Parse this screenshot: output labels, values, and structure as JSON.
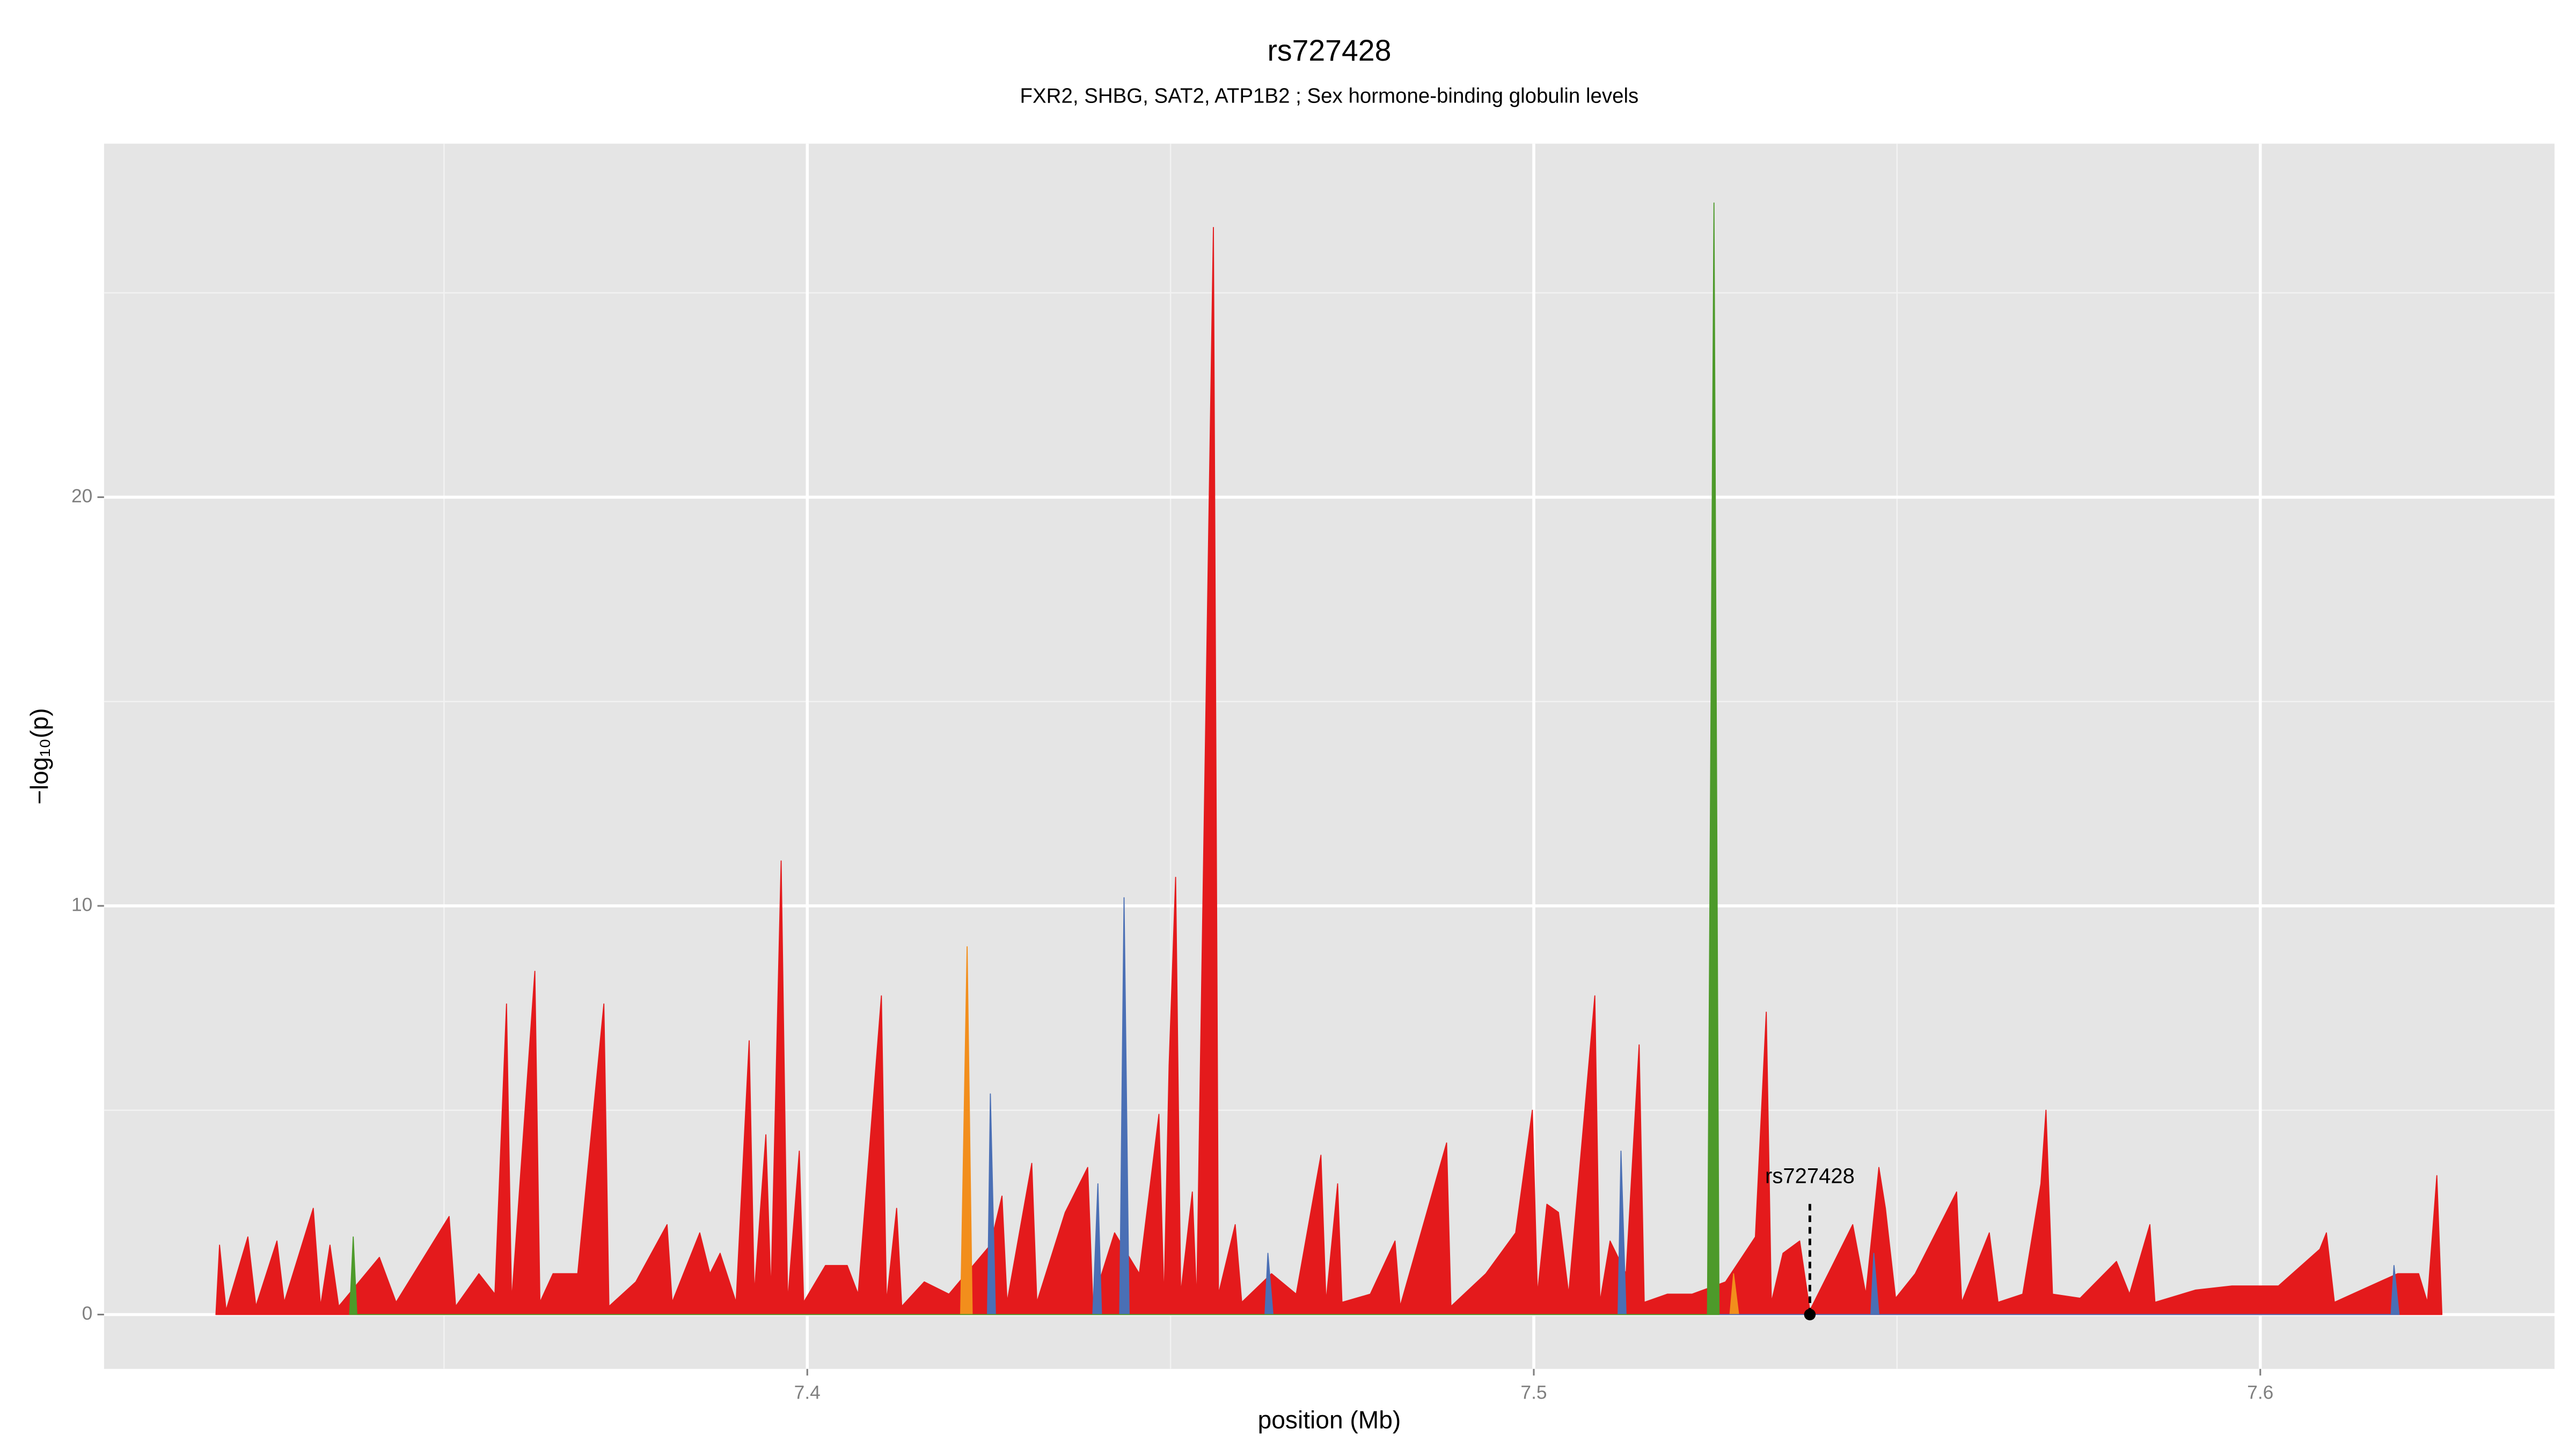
{
  "chart_data": {
    "type": "area",
    "title": "rs727428",
    "subtitle": "FXR2, SHBG, SAT2, ATP1B2 ; Sex hormone-binding globulin levels",
    "xlabel": "position (Mb)",
    "ylabel": "−log₁₀(p)",
    "xlim": [
      7.3032,
      7.6405
    ],
    "ylim": [
      -1.33,
      28.65
    ],
    "xticks": [
      7.4,
      7.5,
      7.6
    ],
    "yticks": [
      0,
      10,
      20
    ],
    "minor_xticks": [
      7.35,
      7.45,
      7.55
    ],
    "minor_yticks": [
      5,
      15,
      25
    ],
    "grid": true,
    "series": [
      {
        "color": "#e41a1c",
        "x": [
          7.3186,
          7.3191,
          7.32,
          7.323,
          7.3241,
          7.327,
          7.328,
          7.332,
          7.333,
          7.3343,
          7.3355,
          7.3411,
          7.3434,
          7.3507,
          7.3516,
          7.3548,
          7.357,
          7.3586,
          7.3593,
          7.3625,
          7.3632,
          7.365,
          7.3684,
          7.372,
          7.3727,
          7.3764,
          7.3807,
          7.3814,
          7.3852,
          7.3866,
          7.388,
          7.3902,
          7.392,
          7.3927,
          7.3943,
          7.395,
          7.3964,
          7.3973,
          7.3989,
          7.3995,
          7.4025,
          7.4055,
          7.407,
          7.4102,
          7.4109,
          7.4123,
          7.413,
          7.4161,
          7.4195,
          7.4252,
          7.4268,
          7.4275,
          7.4309,
          7.4316,
          7.4355,
          7.4386,
          7.4393,
          7.4423,
          7.4457,
          7.4484,
          7.4491,
          7.4498,
          7.4507,
          7.4514,
          7.453,
          7.4536,
          7.4559,
          7.4566,
          7.4589,
          7.4598,
          7.4639,
          7.4673,
          7.4707,
          7.4714,
          7.473,
          7.4736,
          7.4775,
          7.4809,
          7.4816,
          7.488,
          7.4886,
          7.4934,
          7.4975,
          7.4998,
          7.5005,
          7.5018,
          7.5034,
          7.5048,
          7.5084,
          7.5091,
          7.5105,
          7.5127,
          7.5145,
          7.5152,
          7.5184,
          7.5218,
          7.5264,
          7.5305,
          7.532,
          7.5327,
          7.5343,
          7.5366,
          7.538,
          7.5411,
          7.5439,
          7.5457,
          7.5475,
          7.5484,
          7.5498,
          7.5525,
          7.5582,
          7.5589,
          7.5627,
          7.5639,
          7.5673,
          7.5698,
          7.5705,
          7.5714,
          7.5752,
          7.5802,
          7.582,
          7.5848,
          7.5855,
          7.5911,
          7.5961,
          7.6025,
          7.6082,
          7.6091,
          7.6102,
          7.6139,
          7.6189,
          7.6218,
          7.623,
          7.6243,
          7.625
        ],
        "values": [
          0,
          1.7,
          0.1,
          1.9,
          0.2,
          1.8,
          0.3,
          2.6,
          0.2,
          1.7,
          0.2,
          1.4,
          0.3,
          2.4,
          0.2,
          1.0,
          0.5,
          7.6,
          0.3,
          8.4,
          0.3,
          1.0,
          1.0,
          7.6,
          0.2,
          0.8,
          2.2,
          0.3,
          2.0,
          1.0,
          1.5,
          0.3,
          6.7,
          0.5,
          4.4,
          0.5,
          11.1,
          0.3,
          4.0,
          0.3,
          1.2,
          1.2,
          0.5,
          7.8,
          0.3,
          2.6,
          0.2,
          0.8,
          0.5,
          1.7,
          2.9,
          0.3,
          3.7,
          0.3,
          2.5,
          3.6,
          0.3,
          2.0,
          1.0,
          4.9,
          0.3,
          6.1,
          10.7,
          0.5,
          3.0,
          0.3,
          26.6,
          0.5,
          2.2,
          0.3,
          1.0,
          0.5,
          3.9,
          0.3,
          3.2,
          0.3,
          0.5,
          1.8,
          0.2,
          4.2,
          0.2,
          1.0,
          2.0,
          5.0,
          0.5,
          2.7,
          2.5,
          0.5,
          7.8,
          0.3,
          1.8,
          1.0,
          6.6,
          0.3,
          0.5,
          0.5,
          0.8,
          1.9,
          7.4,
          0.3,
          1.5,
          1.8,
          0.1,
          1.2,
          2.2,
          0.5,
          3.6,
          2.6,
          0.4,
          1.0,
          3.0,
          0.3,
          2.0,
          0.3,
          0.5,
          3.2,
          5.0,
          0.5,
          0.4,
          1.3,
          0.5,
          2.2,
          0.3,
          0.6,
          0.7,
          0.7,
          1.6,
          2.0,
          0.3,
          0.6,
          1.0,
          1.0,
          0.3,
          3.4,
          0
        ]
      },
      {
        "color": "#f28e1c",
        "x": [
          7.4211,
          7.422,
          7.4227,
          7.527,
          7.5275,
          7.5282
        ],
        "values": [
          0,
          9.0,
          0,
          0,
          1.0,
          0
        ]
      },
      {
        "color": "#4a6fb5",
        "x": [
          7.4248,
          7.4252,
          7.4259,
          7.4393,
          7.44,
          7.4405,
          7.443,
          7.4436,
          7.4443,
          7.463,
          7.4634,
          7.4641,
          7.5116,
          7.512,
          7.5127,
          7.5464,
          7.5468,
          7.5475,
          7.618,
          7.6184,
          7.6191
        ],
        "values": [
          0,
          5.4,
          0,
          0,
          3.2,
          0,
          0,
          10.2,
          0,
          0,
          1.5,
          0,
          0,
          4.0,
          0,
          0,
          1.5,
          0,
          0,
          1.2,
          0
        ]
      },
      {
        "color": "#4d9a2a",
        "x": [
          7.337,
          7.3375,
          7.338,
          7.5239,
          7.5248,
          7.5255
        ],
        "values": [
          0,
          1.9,
          0,
          0,
          27.2,
          0
        ]
      }
    ],
    "annotation": {
      "text": "rs727428",
      "x": 7.538,
      "y": 0
    }
  }
}
